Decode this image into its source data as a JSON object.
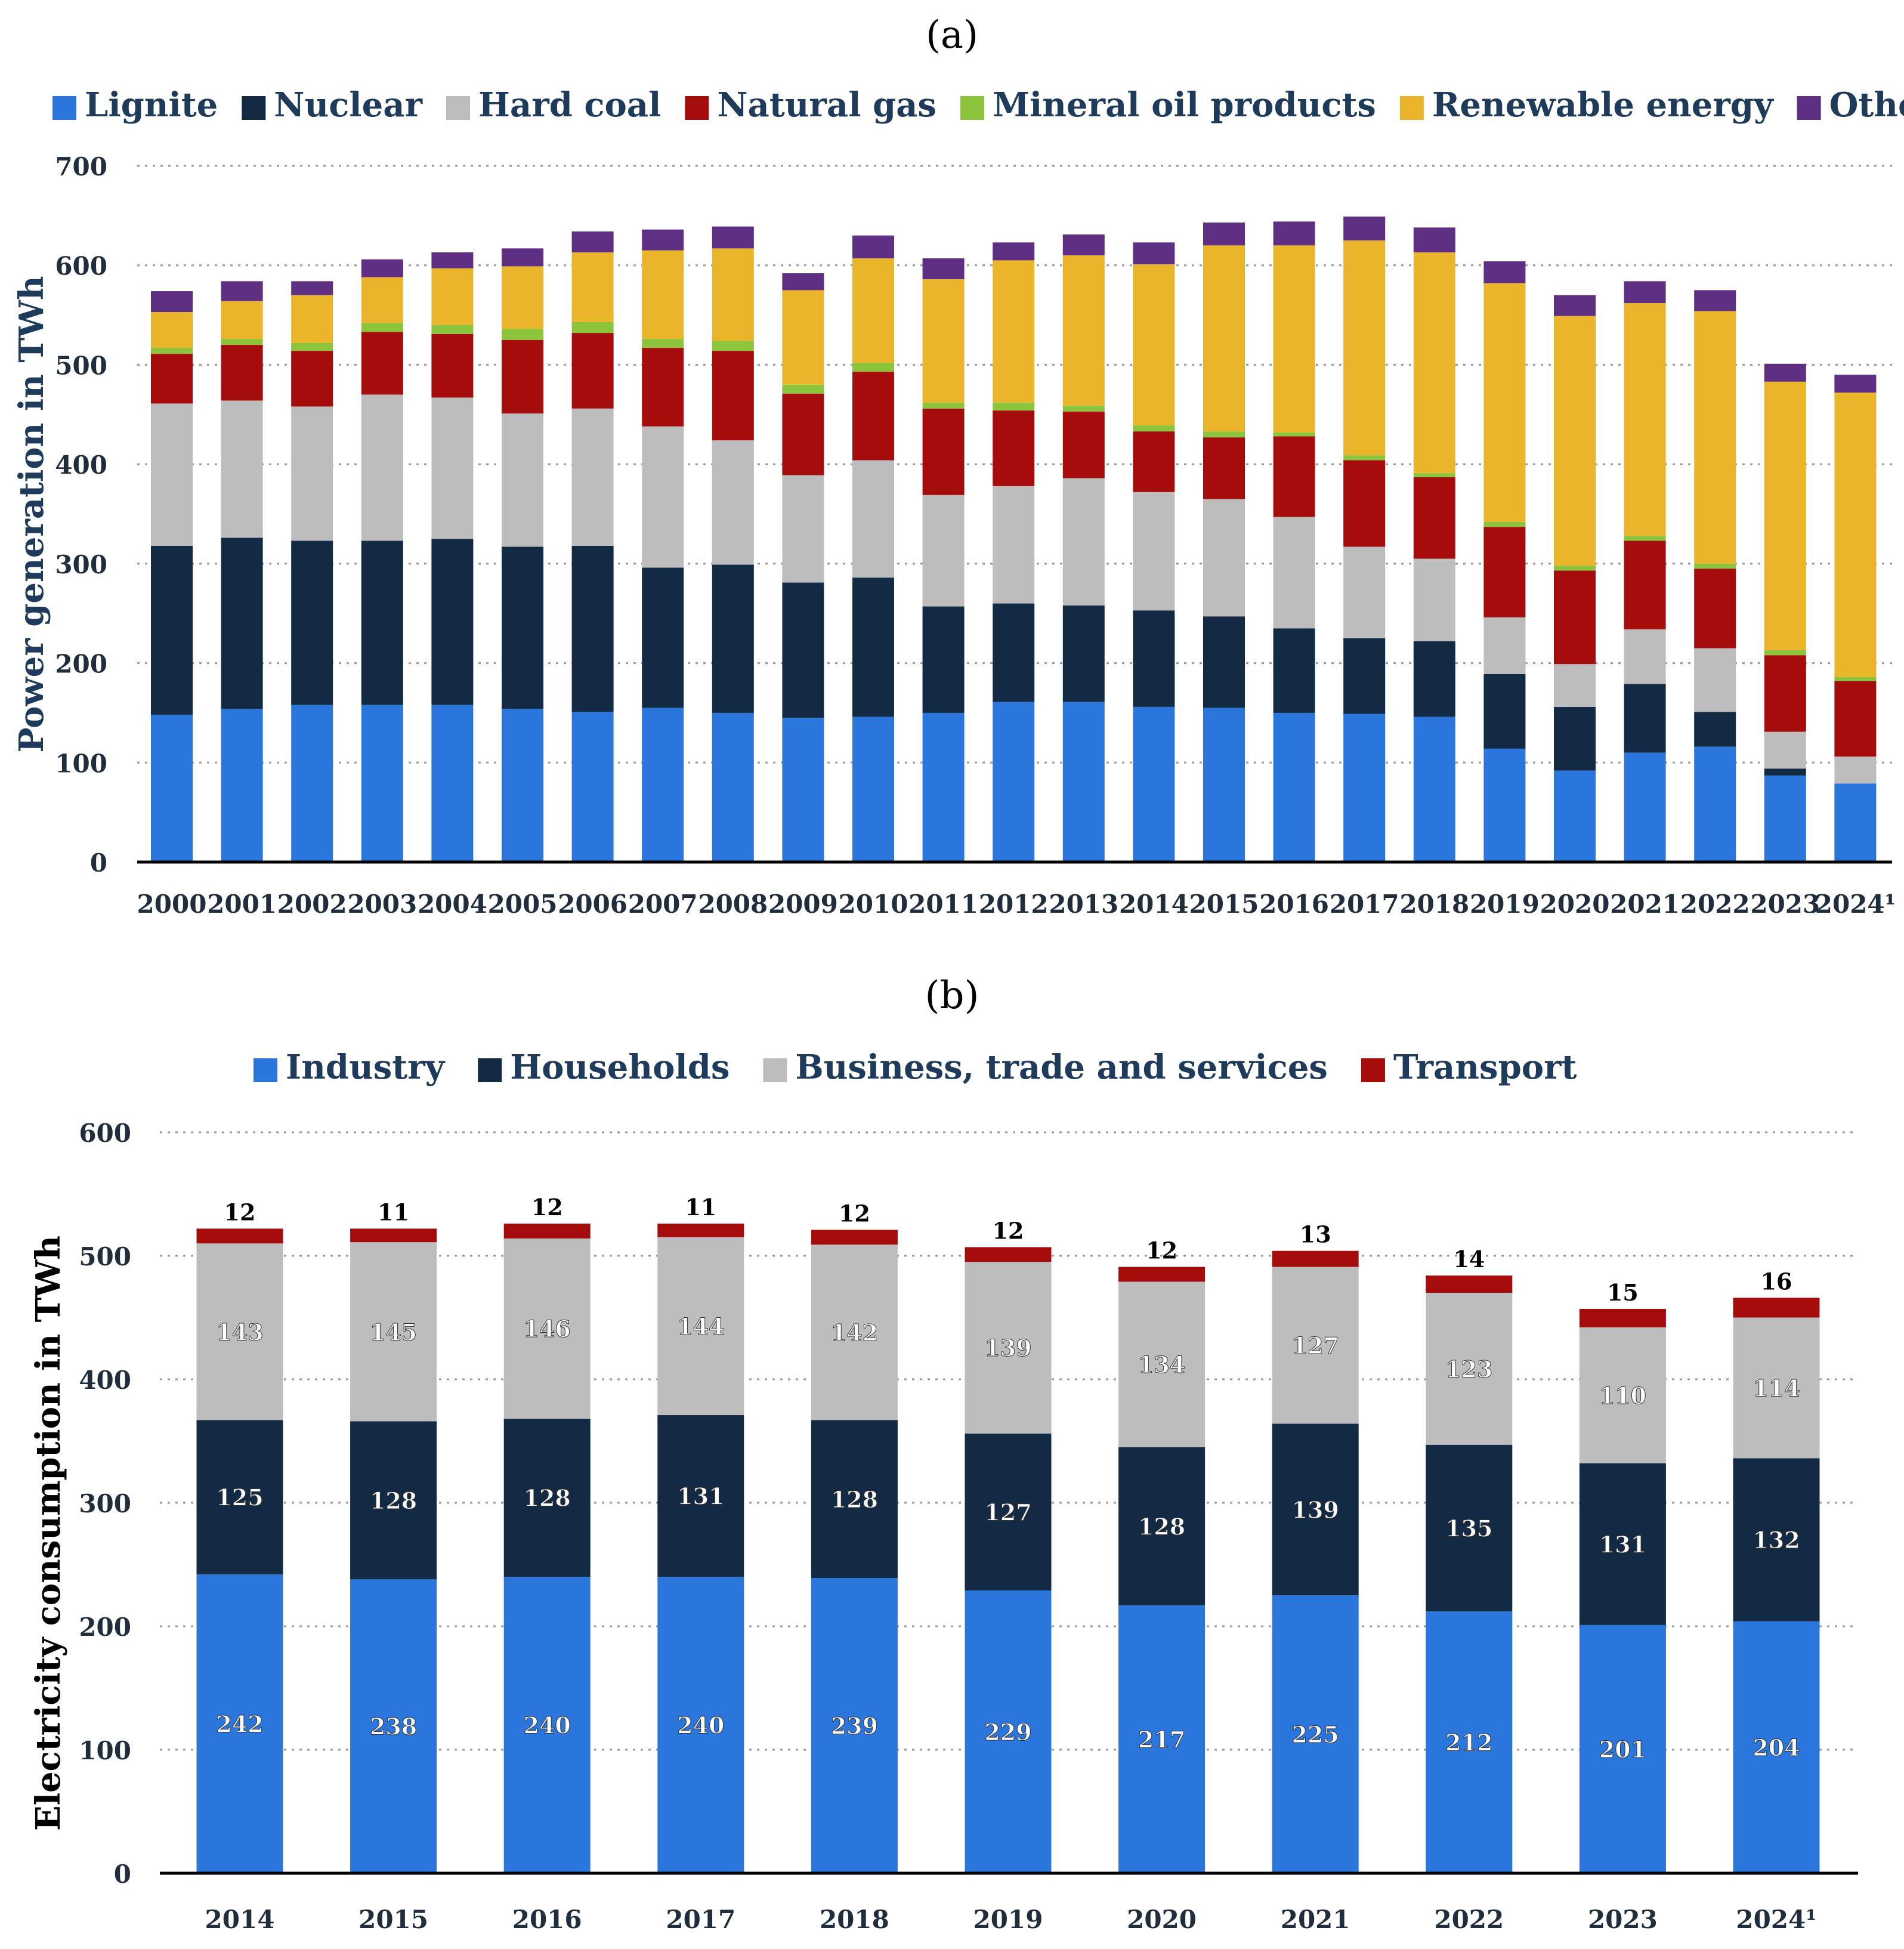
{
  "chart_data": [
    {
      "panel_label": "(a)",
      "type": "bar",
      "stacked": true,
      "categories": [
        "2000",
        "2001",
        "2002",
        "2003",
        "2004",
        "2005",
        "2006",
        "2007",
        "2008",
        "2009",
        "2010",
        "2011",
        "2012",
        "2013",
        "2014",
        "2015",
        "2016",
        "2017",
        "2018",
        "2019",
        "2020",
        "2021",
        "2022",
        "2023",
        "2024¹"
      ],
      "series": [
        {
          "name": "Lignite",
          "color": "#2a76dd",
          "values": [
            148,
            154,
            158,
            158,
            158,
            154,
            151,
            155,
            150,
            145,
            146,
            150,
            161,
            161,
            156,
            155,
            150,
            149,
            146,
            114,
            92,
            110,
            116,
            87,
            79
          ]
        },
        {
          "name": "Nuclear",
          "color": "#132a44",
          "values": [
            170,
            172,
            165,
            165,
            167,
            163,
            167,
            141,
            149,
            136,
            140,
            107,
            99,
            97,
            97,
            92,
            85,
            76,
            76,
            75,
            64,
            69,
            35,
            7,
            0
          ]
        },
        {
          "name": "Hard coal",
          "color": "#bdbdbd",
          "values": [
            143,
            138,
            135,
            147,
            142,
            134,
            138,
            142,
            125,
            108,
            118,
            112,
            118,
            128,
            119,
            118,
            112,
            92,
            83,
            57,
            43,
            55,
            64,
            37,
            27
          ]
        },
        {
          "name": "Natural gas",
          "color": "#a50d0d",
          "values": [
            50,
            56,
            56,
            63,
            64,
            74,
            76,
            79,
            90,
            82,
            89,
            87,
            76,
            67,
            61,
            62,
            81,
            87,
            82,
            91,
            94,
            89,
            80,
            77,
            76
          ]
        },
        {
          "name": "Mineral oil products",
          "color": "#8cc43c",
          "values": [
            6,
            6,
            8,
            9,
            9,
            11,
            11,
            9,
            10,
            9,
            9,
            6,
            8,
            6,
            6,
            6,
            4,
            5,
            4,
            5,
            5,
            5,
            5,
            5,
            4
          ]
        },
        {
          "name": "Renewable energy",
          "color": "#ebb52b",
          "values": [
            36,
            38,
            48,
            46,
            57,
            63,
            70,
            89,
            93,
            95,
            105,
            124,
            143,
            151,
            162,
            187,
            188,
            216,
            222,
            240,
            251,
            234,
            254,
            270,
            286
          ]
        },
        {
          "name": "Others",
          "color": "#5f2f83",
          "values": [
            21,
            20,
            14,
            18,
            16,
            18,
            21,
            21,
            22,
            17,
            23,
            21,
            18,
            21,
            22,
            23,
            24,
            24,
            25,
            22,
            21,
            22,
            21,
            18,
            18
          ]
        }
      ],
      "title": "",
      "xlabel": "",
      "ylabel": "Power generation in TWh",
      "ylim": [
        0,
        700
      ],
      "yticks": [
        0,
        100,
        200,
        300,
        400,
        500,
        600,
        700
      ],
      "grid": true,
      "legend": "top"
    },
    {
      "panel_label": "(b)",
      "type": "bar",
      "stacked": true,
      "categories": [
        "2014",
        "2015",
        "2016",
        "2017",
        "2018",
        "2019",
        "2020",
        "2021",
        "2022",
        "2023",
        "2024¹"
      ],
      "series": [
        {
          "name": "Industry",
          "color": "#2a76dd",
          "values": [
            242,
            238,
            240,
            240,
            239,
            229,
            217,
            225,
            212,
            201,
            204
          ]
        },
        {
          "name": "Households",
          "color": "#132a44",
          "values": [
            125,
            128,
            128,
            131,
            128,
            127,
            128,
            139,
            135,
            131,
            132
          ]
        },
        {
          "name": "Business, trade and services",
          "color": "#bdbdbd",
          "values": [
            143,
            145,
            146,
            144,
            142,
            139,
            134,
            127,
            123,
            110,
            114
          ]
        },
        {
          "name": "Transport",
          "color": "#a50d0d",
          "values": [
            12,
            11,
            12,
            11,
            12,
            12,
            12,
            13,
            14,
            15,
            16
          ]
        }
      ],
      "title": "",
      "xlabel": "",
      "ylabel": "Electricity consumption in TWh",
      "ylim": [
        0,
        600
      ],
      "yticks": [
        0,
        100,
        200,
        300,
        400,
        500,
        600
      ],
      "grid": true,
      "legend": "top",
      "data_labels": true
    }
  ]
}
